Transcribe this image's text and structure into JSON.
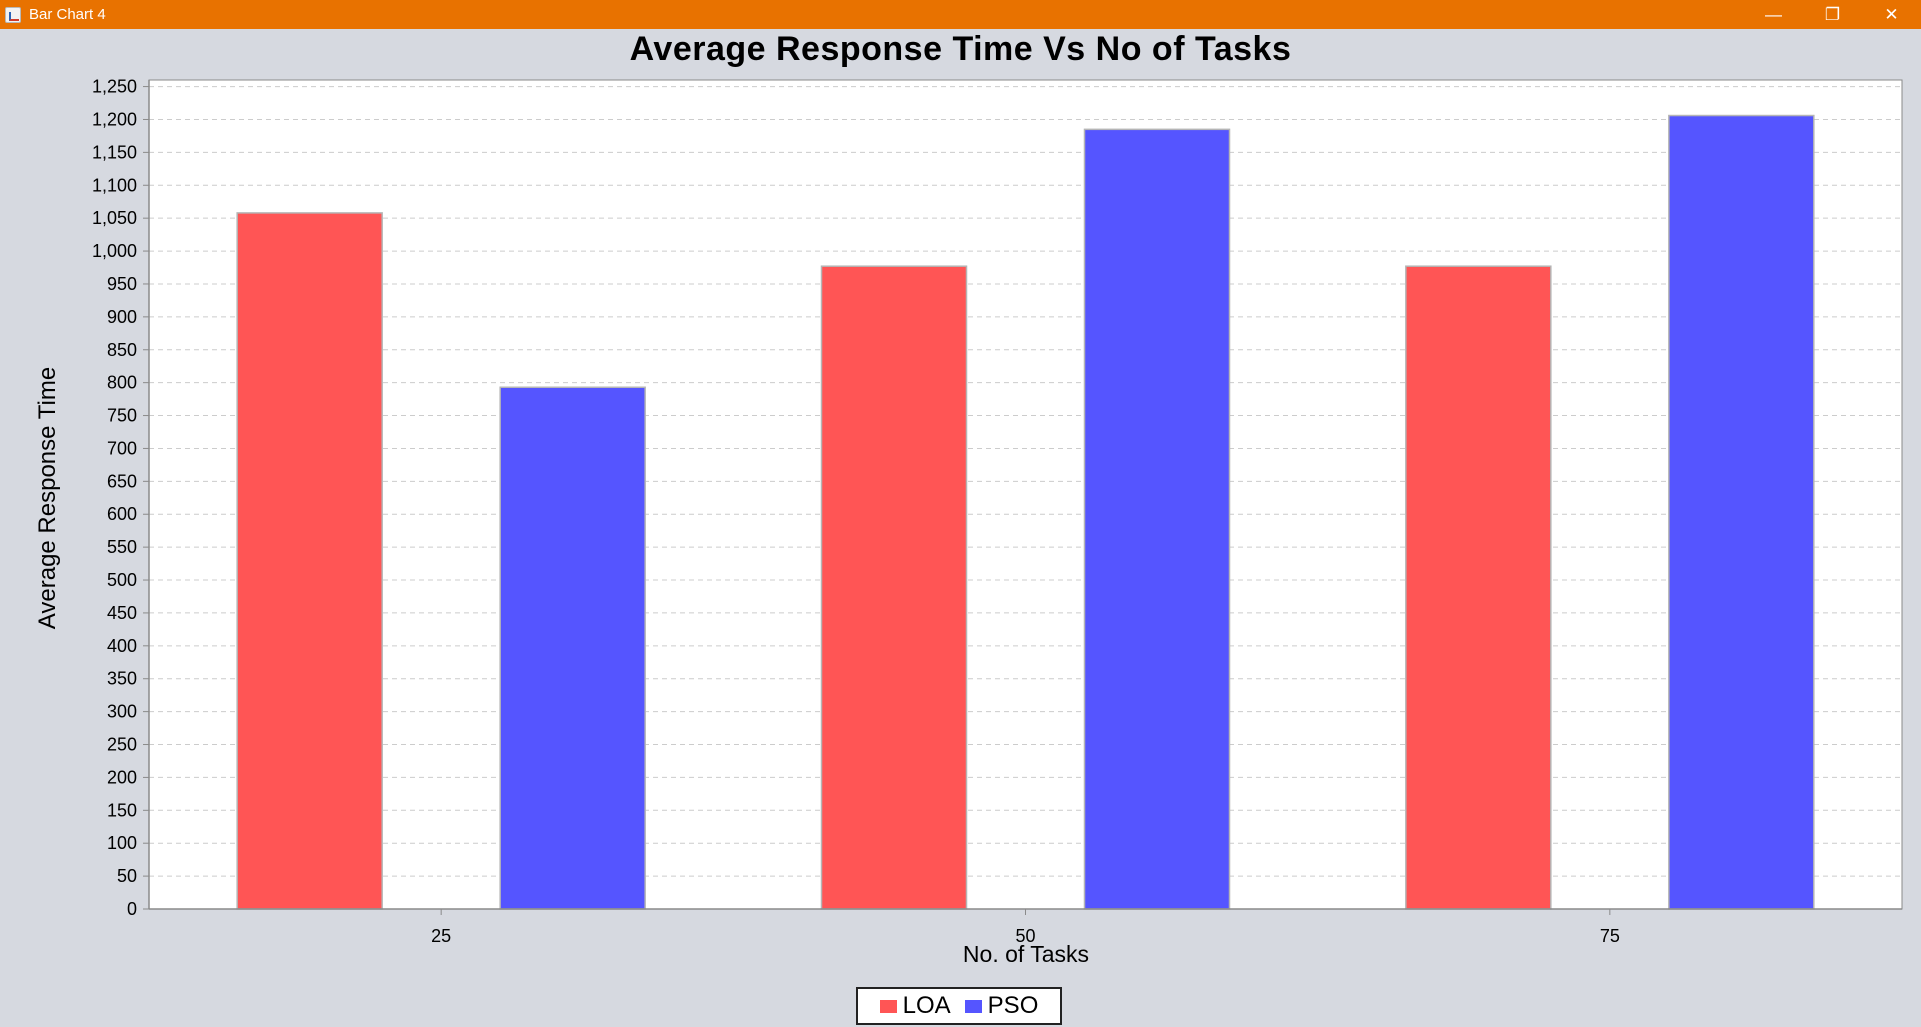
{
  "window": {
    "title": "Bar Chart 4",
    "controls": {
      "minimize": "—",
      "maximize": "❐",
      "close": "✕"
    }
  },
  "colors": {
    "titlebar": "#e87200",
    "background": "#d6d9e0",
    "plot_background": "#ffffff",
    "grid": "#cccccc",
    "axis": "#8a8a8a"
  },
  "chart_data": {
    "type": "bar",
    "title": "Average Response Time Vs No of Tasks",
    "xlabel": "No. of Tasks",
    "ylabel": "Average Response Time",
    "categories": [
      "25",
      "50",
      "75"
    ],
    "series": [
      {
        "name": "LOA",
        "color": "#ff5555",
        "values": [
          1058,
          977,
          977
        ]
      },
      {
        "name": "PSO",
        "color": "#5555ff",
        "values": [
          793,
          1185,
          1206
        ]
      }
    ],
    "ylim": [
      0,
      1260
    ],
    "ytick_step": 50,
    "grid": true,
    "legend": "bottom-center"
  }
}
